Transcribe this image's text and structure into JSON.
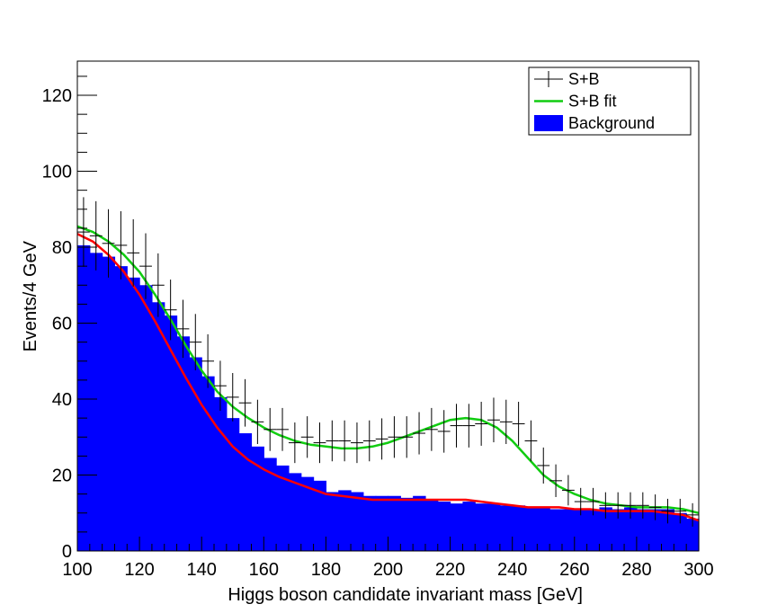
{
  "chart_data": {
    "type": "bar",
    "xlabel": "Higgs boson candidate invariant mass [GeV]",
    "ylabel": "Events/4 GeV",
    "xlim": [
      100,
      300
    ],
    "ylim": [
      0,
      129
    ],
    "bin_width": 4,
    "x_ticks": [
      100,
      120,
      140,
      160,
      180,
      200,
      220,
      240,
      260,
      280,
      300
    ],
    "y_ticks": [
      0,
      20,
      40,
      60,
      80,
      100,
      120
    ],
    "grid": false,
    "legend_position": "top-right",
    "legend": [
      {
        "label": "S+B",
        "kind": "errorbar"
      },
      {
        "label": "S+B fit",
        "kind": "line"
      },
      {
        "label": "Background",
        "kind": "fill"
      }
    ],
    "colors": {
      "background": "#0000ff",
      "fit_sb": "#11cc11",
      "fit_bkg": "#ff0000",
      "points": "#000000"
    },
    "series": [
      {
        "name": "Background",
        "kind": "histogram",
        "bin_edges_start": 100,
        "values": [
          80.5,
          78.5,
          77.5,
          75,
          72,
          70,
          65.5,
          62,
          56.5,
          51,
          46,
          40.5,
          35,
          31,
          27.5,
          24.5,
          22.5,
          20.5,
          19.5,
          18.5,
          15.5,
          16,
          15.5,
          14.5,
          14.5,
          14.5,
          14,
          14.5,
          13.5,
          13,
          12.5,
          13,
          12.5,
          12.5,
          12,
          12,
          11.5,
          11.5,
          11,
          11,
          11,
          11,
          11.5,
          11,
          11.5,
          11,
          11,
          11,
          10,
          8.5
        ]
      },
      {
        "name": "S+B",
        "kind": "points",
        "x": [
          102,
          106,
          110,
          114,
          118,
          122,
          126,
          130,
          134,
          138,
          142,
          146,
          150,
          154,
          158,
          162,
          166,
          170,
          174,
          178,
          182,
          186,
          190,
          194,
          198,
          202,
          206,
          210,
          214,
          218,
          222,
          226,
          230,
          234,
          238,
          242,
          246,
          250,
          254,
          258,
          262,
          266,
          270,
          274,
          278,
          282,
          286,
          290,
          294,
          298
        ],
        "y": [
          84,
          83,
          81,
          80.5,
          78.5,
          75,
          70,
          63.5,
          58.5,
          55,
          50,
          43.5,
          40.5,
          39,
          34,
          32,
          32,
          28.5,
          30,
          28.5,
          29,
          29,
          28.5,
          29,
          29.5,
          30,
          30,
          31,
          32,
          31.5,
          33,
          33,
          33.5,
          34.5,
          34,
          33.5,
          29,
          22.5,
          18.5,
          16,
          13,
          13,
          12,
          12,
          12,
          12,
          11.5,
          10.5,
          10.5,
          9.5
        ]
      },
      {
        "name": "S+B fit",
        "kind": "line",
        "x": [
          100,
          105,
          110,
          115,
          120,
          125,
          130,
          135,
          140,
          145,
          150,
          155,
          160,
          165,
          170,
          175,
          180,
          185,
          190,
          195,
          200,
          205,
          210,
          215,
          220,
          225,
          230,
          235,
          240,
          245,
          250,
          255,
          260,
          265,
          270,
          275,
          280,
          285,
          290,
          295,
          300
        ],
        "y": [
          85.5,
          84,
          81.5,
          78,
          73.5,
          67.5,
          61,
          54,
          47.5,
          42,
          38,
          35,
          32.5,
          30.5,
          29,
          28,
          27.5,
          27,
          27,
          27.5,
          28.5,
          30,
          31.5,
          33,
          34.5,
          35,
          34.5,
          32.5,
          29,
          24.5,
          20,
          17,
          15,
          13.5,
          12.5,
          12,
          11.5,
          11.5,
          11.5,
          11,
          10
        ]
      },
      {
        "name": "Background fit",
        "kind": "line",
        "x": [
          100,
          105,
          110,
          115,
          120,
          125,
          130,
          135,
          140,
          145,
          150,
          155,
          160,
          165,
          170,
          175,
          180,
          185,
          190,
          195,
          200,
          205,
          210,
          215,
          220,
          225,
          230,
          235,
          240,
          245,
          250,
          255,
          260,
          265,
          270,
          275,
          280,
          285,
          290,
          295,
          300
        ],
        "y": [
          83.5,
          81.5,
          78,
          73.5,
          67.5,
          60.5,
          53,
          45.5,
          38.5,
          32.5,
          27.5,
          24,
          21.5,
          19.5,
          18,
          16.5,
          15,
          14.5,
          14,
          13.5,
          13.5,
          13.5,
          13.5,
          13.5,
          13.5,
          13.5,
          13,
          12.5,
          12,
          11.5,
          11.5,
          11.5,
          11,
          11,
          10.5,
          10.5,
          10.5,
          10.5,
          10,
          9.5,
          8
        ]
      }
    ]
  }
}
